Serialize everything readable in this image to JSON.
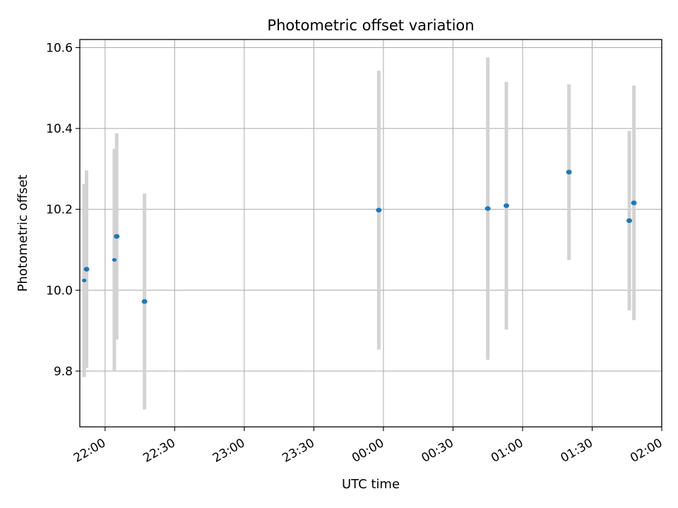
{
  "chart_data": {
    "type": "scatter",
    "title": "Photometric offset variation",
    "xlabel": "UTC time",
    "ylabel": "Photometric offset",
    "x_ticks": [
      "22:00",
      "22:30",
      "23:00",
      "23:30",
      "00:00",
      "00:30",
      "01:00",
      "01:30",
      "02:00"
    ],
    "y_ticks": [
      "9.8",
      "10.0",
      "10.2",
      "10.4",
      "10.6"
    ],
    "y_tick_values": [
      9.8,
      10.0,
      10.2,
      10.4,
      10.6
    ],
    "ylim": [
      9.662,
      10.62
    ],
    "xlim": [
      "21:52",
      "02:00"
    ],
    "grid": true,
    "colors": {
      "point": "#1f77b4",
      "errorbar": "#d3d3d3",
      "grid": "#b0b0b0"
    },
    "points": [
      {
        "time": "21:51",
        "y": 10.024,
        "yerr_low": 0.239,
        "yerr_high": 0.239,
        "marker": "small"
      },
      {
        "time": "21:52",
        "y": 10.052,
        "yerr_low": 0.244,
        "yerr_high": 0.244,
        "marker": "normal"
      },
      {
        "time": "22:04",
        "y": 10.075,
        "yerr_low": 0.275,
        "yerr_high": 0.275,
        "marker": "small"
      },
      {
        "time": "22:05",
        "y": 10.133,
        "yerr_low": 0.255,
        "yerr_high": 0.255,
        "marker": "normal"
      },
      {
        "time": "22:17",
        "y": 9.972,
        "yerr_low": 0.267,
        "yerr_high": 0.267,
        "marker": "normal"
      },
      {
        "time": "23:58",
        "y": 10.198,
        "yerr_low": 0.345,
        "yerr_high": 0.345,
        "marker": "normal"
      },
      {
        "time": "00:45",
        "y": 10.202,
        "yerr_low": 0.374,
        "yerr_high": 0.374,
        "marker": "normal"
      },
      {
        "time": "00:53",
        "y": 10.209,
        "yerr_low": 0.306,
        "yerr_high": 0.306,
        "marker": "normal"
      },
      {
        "time": "01:20",
        "y": 10.292,
        "yerr_low": 0.217,
        "yerr_high": 0.217,
        "marker": "normal"
      },
      {
        "time": "01:46",
        "y": 10.172,
        "yerr_low": 0.222,
        "yerr_high": 0.222,
        "marker": "normal"
      },
      {
        "time": "01:48",
        "y": 10.216,
        "yerr_low": 0.29,
        "yerr_high": 0.29,
        "marker": "normal"
      }
    ]
  }
}
